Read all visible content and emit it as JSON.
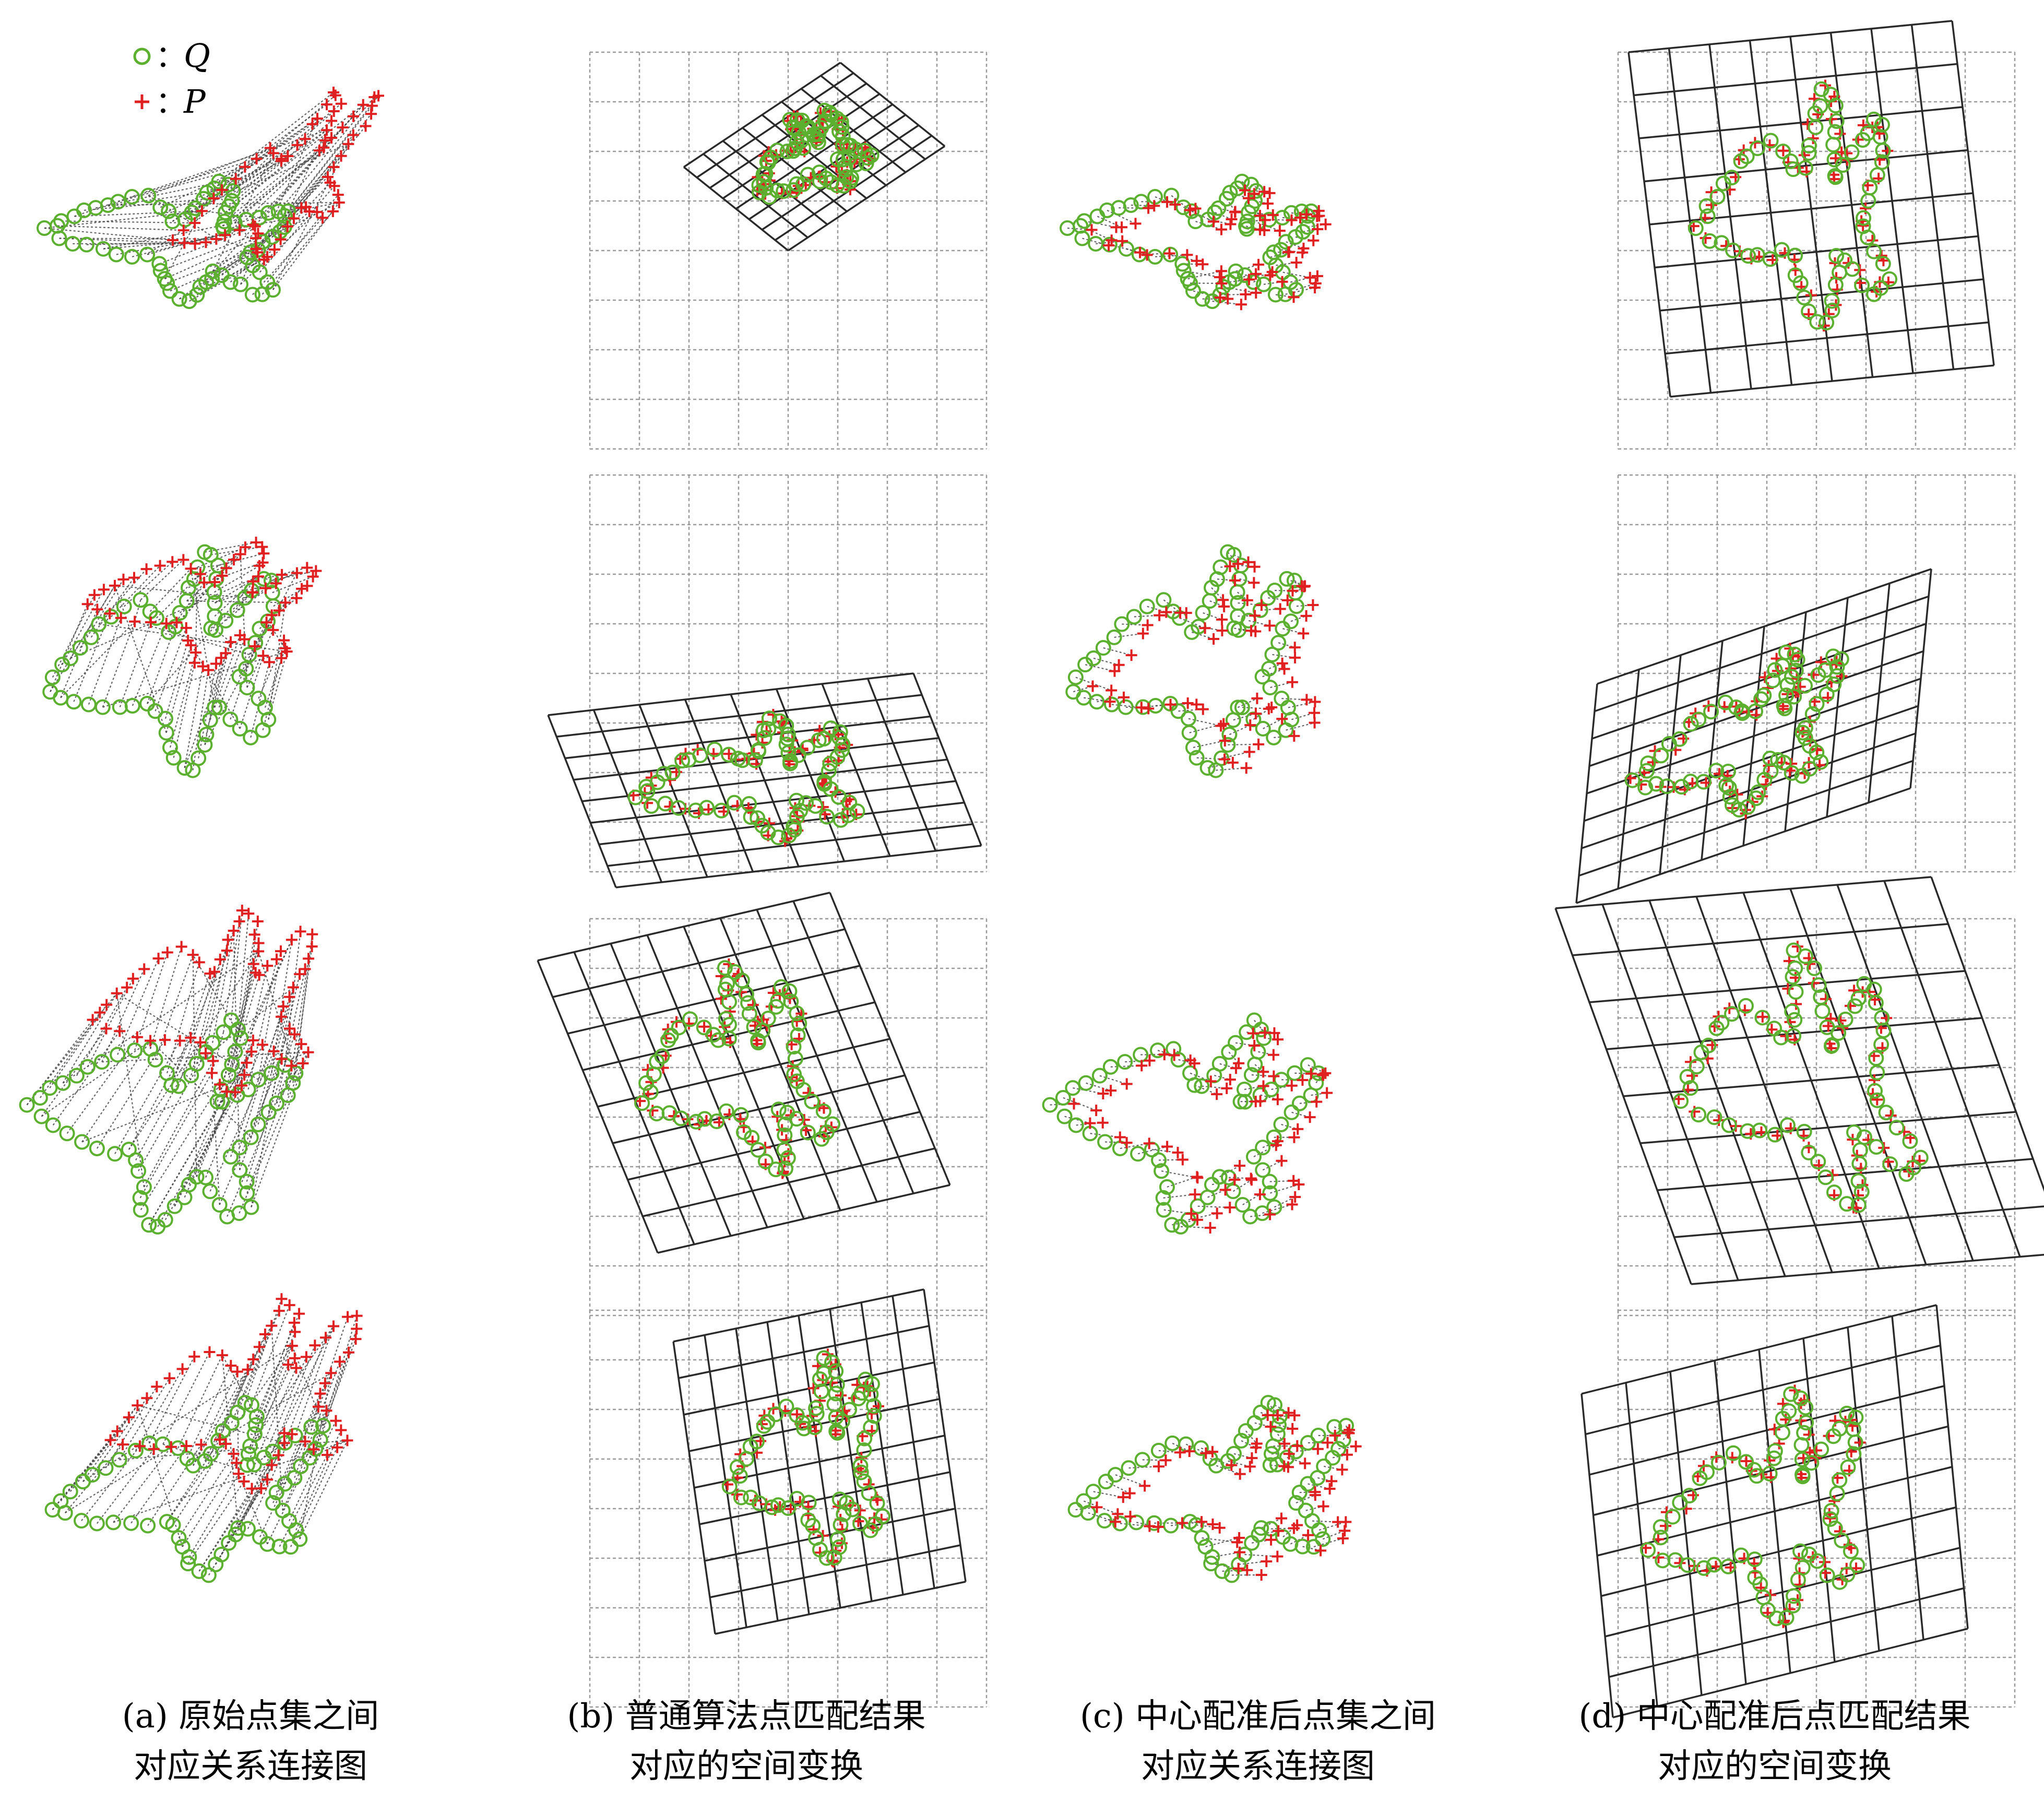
{
  "legend": [
    {
      "label": "Q",
      "sep": "：",
      "marker": "circle",
      "color": "#5cb030"
    },
    {
      "label": "P",
      "sep": "：",
      "marker": "plus",
      "color": "#e02020"
    }
  ],
  "captions": [
    {
      "line1": "(a)  原始点集之间",
      "line2": "对应关系连接图"
    },
    {
      "line1": "(b)  普通算法点匹配结果",
      "line2": "对应的空间变换"
    },
    {
      "line1": "(c)  中心配准后点集之间",
      "line2": "对应关系连接图"
    },
    {
      "line1": "(d)  中心配准后点匹配结果",
      "line2": "对应的空间变换"
    }
  ],
  "colors": {
    "Q": "#5cb030",
    "P": "#e02020",
    "link": "#404040",
    "grid_reference": "#9a9a9a",
    "grid_transformed": "#2a2a2a"
  }
}
